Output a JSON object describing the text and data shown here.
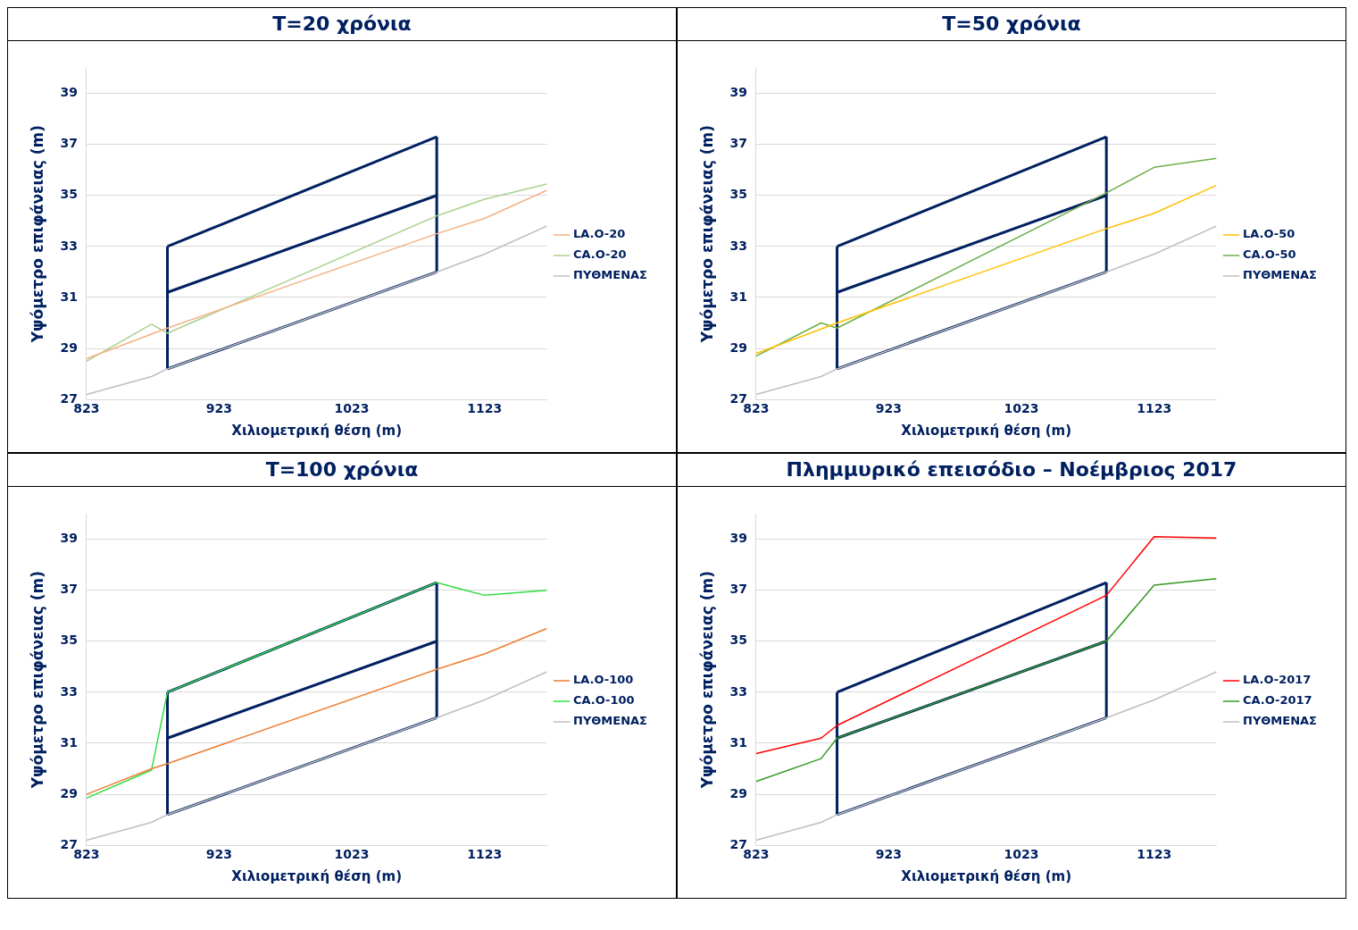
{
  "chart_data": [
    {
      "type": "line",
      "title": "T=20 χρόνια",
      "xlabel": "Χιλιομετρική θέση (m)",
      "ylabel": "Υψόμετρο επιφάνειας (m)",
      "xlim": [
        823,
        1170
      ],
      "ylim": [
        27,
        40
      ],
      "xticks": [
        823,
        923,
        1023,
        1123
      ],
      "yticks": [
        27,
        29,
        31,
        33,
        35,
        37,
        39
      ],
      "grid": "y",
      "legend": "right",
      "series": [
        {
          "name": "LA.O-20",
          "color": "#f4b183",
          "x": [
            823,
            884,
            1087,
            1123,
            1170
          ],
          "values": [
            28.6,
            29.8,
            33.5,
            34.1,
            35.2
          ]
        },
        {
          "name": "CA.O-20",
          "color": "#a9d18e",
          "x": [
            823,
            872,
            884,
            1087,
            1123,
            1170
          ],
          "values": [
            28.5,
            29.95,
            29.6,
            34.2,
            34.85,
            35.45
          ]
        },
        {
          "name": "ΠΥΘΜΕΝΑΣ",
          "color": "#bfbfbf",
          "x": [
            823,
            872,
            884,
            1087,
            1123,
            1170
          ],
          "values": [
            27.2,
            27.9,
            28.2,
            32,
            32.7,
            33.8
          ]
        },
        {
          "type": "line",
          "color": "#002060",
          "x": [
            884,
            1087
          ],
          "values": [
            33,
            37.3
          ]
        },
        {
          "type": "line",
          "color": "#002060",
          "x": [
            884,
            1087
          ],
          "values": [
            31.2,
            35
          ]
        },
        {
          "type": "line",
          "color": "#002060",
          "x": [
            884,
            1087
          ],
          "values": [
            28.2,
            32
          ]
        },
        {
          "type": "line",
          "color": "#002060",
          "x": [
            884,
            884
          ],
          "values": [
            28.2,
            33
          ]
        },
        {
          "type": "line",
          "color": "#002060",
          "x": [
            1087,
            1087
          ],
          "values": [
            32,
            37.3
          ]
        }
      ]
    },
    {
      "type": "line",
      "title": "T=50 χρόνια",
      "xlabel": "Χιλιομετρική θέση (m)",
      "ylabel": "Υψόμετρο επιφάνειας (m)",
      "xlim": [
        823,
        1170
      ],
      "ylim": [
        27,
        40
      ],
      "xticks": [
        823,
        923,
        1023,
        1123
      ],
      "yticks": [
        27,
        29,
        31,
        33,
        35,
        37,
        39
      ],
      "grid": "y",
      "legend": "right",
      "series": [
        {
          "name": "LA.O-50",
          "color": "#ffc000",
          "x": [
            823,
            884,
            1087,
            1123,
            1170
          ],
          "values": [
            28.8,
            30,
            33.7,
            34.3,
            35.4
          ]
        },
        {
          "name": "CA.O-50",
          "color": "#70ad47",
          "x": [
            823,
            872,
            884,
            1087,
            1123,
            1170
          ],
          "values": [
            28.7,
            30,
            29.8,
            35.1,
            36.1,
            36.45
          ]
        },
        {
          "name": "ΠΥΘΜΕΝΑΣ",
          "color": "#bfbfbf",
          "x": [
            823,
            872,
            884,
            1087,
            1123,
            1170
          ],
          "values": [
            27.2,
            27.9,
            28.2,
            32,
            32.7,
            33.8
          ]
        },
        {
          "type": "line",
          "color": "#002060",
          "x": [
            884,
            1087
          ],
          "values": [
            33,
            37.3
          ]
        },
        {
          "type": "line",
          "color": "#002060",
          "x": [
            884,
            1087
          ],
          "values": [
            31.2,
            35
          ]
        },
        {
          "type": "line",
          "color": "#002060",
          "x": [
            884,
            1087
          ],
          "values": [
            28.2,
            32
          ]
        },
        {
          "type": "line",
          "color": "#002060",
          "x": [
            884,
            884
          ],
          "values": [
            28.2,
            33
          ]
        },
        {
          "type": "line",
          "color": "#002060",
          "x": [
            1087,
            1087
          ],
          "values": [
            32,
            37.3
          ]
        }
      ]
    },
    {
      "type": "line",
      "title": "T=100 χρόνια",
      "xlabel": "Χιλιομετρική θέση (m)",
      "ylabel": "Υψόμετρο επιφάνειας (m)",
      "xlim": [
        823,
        1170
      ],
      "ylim": [
        27,
        40
      ],
      "xticks": [
        823,
        923,
        1023,
        1123
      ],
      "yticks": [
        27,
        29,
        31,
        33,
        35,
        37,
        39
      ],
      "grid": "y",
      "legend": "right",
      "series": [
        {
          "name": "LA.O-100",
          "color": "#ed7d31",
          "x": [
            823,
            872,
            884,
            1087,
            1123,
            1170
          ],
          "values": [
            29,
            30,
            30.2,
            33.9,
            34.5,
            35.5
          ]
        },
        {
          "name": "CA.O-100",
          "color": "#33dd44",
          "x": [
            823,
            872,
            884,
            1087,
            1123,
            1170
          ],
          "values": [
            28.85,
            29.95,
            33,
            37.3,
            36.8,
            37
          ]
        },
        {
          "name": "ΠΥΘΜΕΝΑΣ",
          "color": "#bfbfbf",
          "x": [
            823,
            872,
            884,
            1087,
            1123,
            1170
          ],
          "values": [
            27.2,
            27.9,
            28.2,
            32,
            32.7,
            33.8
          ]
        },
        {
          "type": "line",
          "color": "#002060",
          "x": [
            884,
            1087
          ],
          "values": [
            33,
            37.3
          ]
        },
        {
          "type": "line",
          "color": "#002060",
          "x": [
            884,
            1087
          ],
          "values": [
            31.2,
            35
          ]
        },
        {
          "type": "line",
          "color": "#002060",
          "x": [
            884,
            1087
          ],
          "values": [
            28.2,
            32
          ]
        },
        {
          "type": "line",
          "color": "#002060",
          "x": [
            884,
            884
          ],
          "values": [
            28.2,
            33
          ]
        },
        {
          "type": "line",
          "color": "#002060",
          "x": [
            1087,
            1087
          ],
          "values": [
            32,
            37.3
          ]
        }
      ]
    },
    {
      "type": "line",
      "title": "Πλημμυρικό επεισόδιο – Νοέμβριος 2017",
      "xlabel": "Χιλιομετρική θέση (m)",
      "ylabel": "Υψόμετρο επιφάνειας (m)",
      "xlim": [
        823,
        1170
      ],
      "ylim": [
        27,
        40
      ],
      "xticks": [
        823,
        923,
        1023,
        1123
      ],
      "yticks": [
        27,
        29,
        31,
        33,
        35,
        37,
        39
      ],
      "grid": "y",
      "legend": "right",
      "series": [
        {
          "name": "LA.O-2017",
          "color": "#ff0000",
          "x": [
            823,
            872,
            884,
            1087,
            1123,
            1170
          ],
          "values": [
            30.6,
            31.2,
            31.7,
            36.8,
            39.1,
            39.05
          ]
        },
        {
          "name": "CA.O-2017",
          "color": "#339922",
          "x": [
            823,
            872,
            884,
            1087,
            1123,
            1170
          ],
          "values": [
            29.5,
            30.4,
            31.2,
            35,
            37.2,
            37.45
          ]
        },
        {
          "name": "ΠΥΘΜΕΝΑΣ",
          "color": "#bfbfbf",
          "x": [
            823,
            872,
            884,
            1087,
            1123,
            1170
          ],
          "values": [
            27.2,
            27.9,
            28.2,
            32,
            32.7,
            33.8
          ]
        },
        {
          "type": "line",
          "color": "#002060",
          "x": [
            884,
            1087
          ],
          "values": [
            33,
            37.3
          ]
        },
        {
          "type": "line",
          "color": "#002060",
          "x": [
            884,
            1087
          ],
          "values": [
            31.2,
            35
          ]
        },
        {
          "type": "line",
          "color": "#002060",
          "x": [
            884,
            1087
          ],
          "values": [
            28.2,
            32
          ]
        },
        {
          "type": "line",
          "color": "#002060",
          "x": [
            884,
            884
          ],
          "values": [
            28.2,
            33
          ]
        },
        {
          "type": "line",
          "color": "#002060",
          "x": [
            1087,
            1087
          ],
          "values": [
            32,
            37.3
          ]
        }
      ]
    }
  ]
}
